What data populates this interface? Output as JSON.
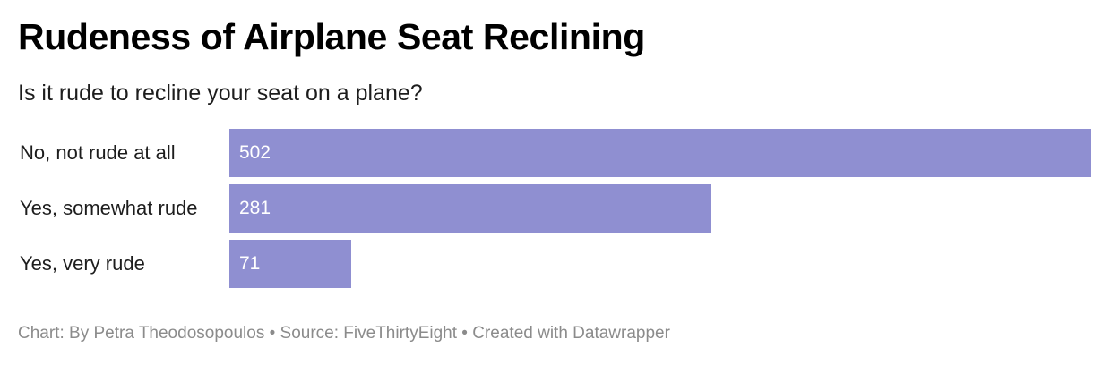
{
  "chart_data": {
    "type": "bar",
    "orientation": "horizontal",
    "title": "Rudeness of Airplane Seat Reclining",
    "subtitle": "Is it rude to recline your seat on a plane?",
    "categories": [
      "No, not rude at all",
      "Yes, somewhat rude",
      "Yes, very rude"
    ],
    "values": [
      502,
      281,
      71
    ],
    "xlim": [
      0,
      502
    ],
    "grid": false,
    "legend": "none",
    "bar_color": "#8f8fd1",
    "value_label_color": "#ffffff",
    "footer": {
      "credit": "Chart: By Petra Theodosopoulos",
      "separator": "•",
      "source": "Source: FiveThirtyEight",
      "tool": "Created with Datawrapper"
    }
  }
}
